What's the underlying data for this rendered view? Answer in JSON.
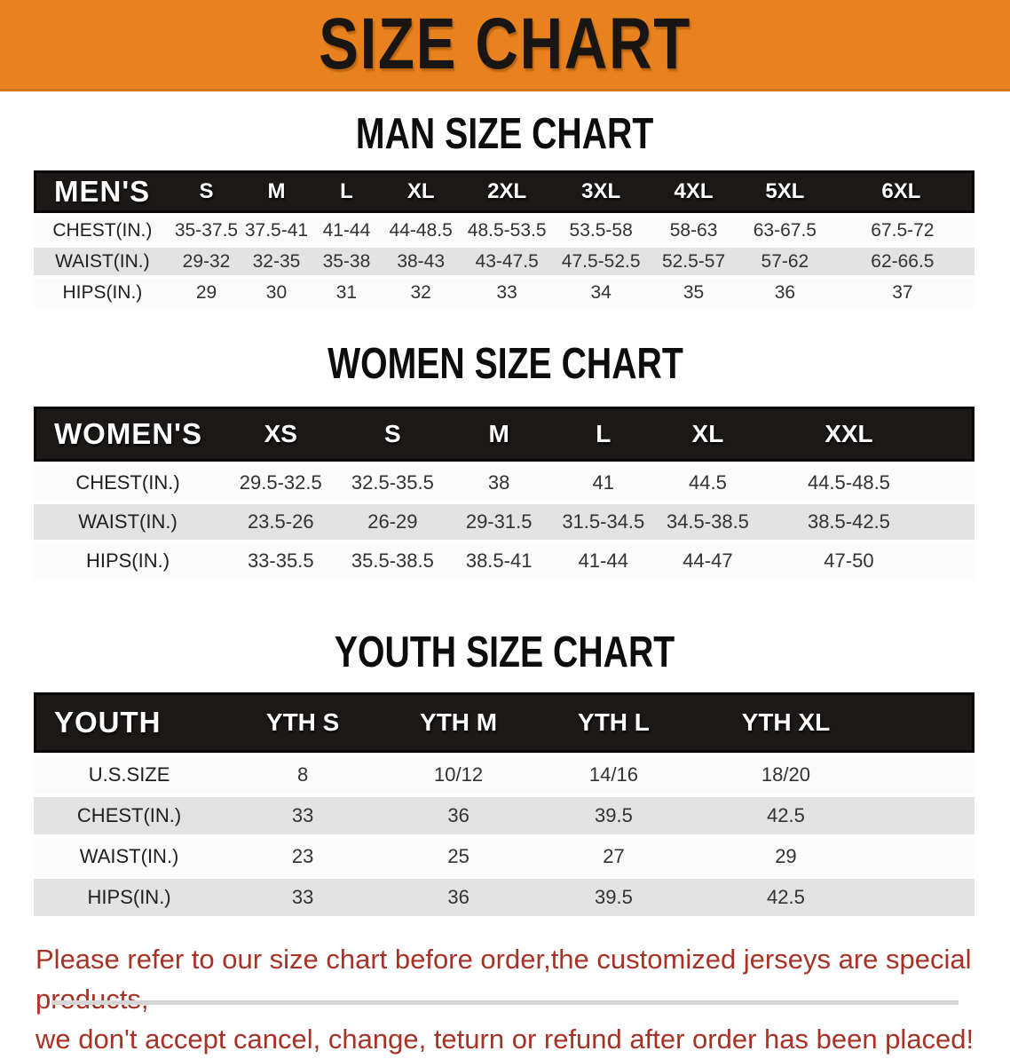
{
  "banner": {
    "title": "SIZE CHART",
    "bg_color": "#E8821E"
  },
  "sections": [
    {
      "id": "men",
      "heading": "MAN SIZE CHART",
      "table": {
        "group_label": "MEN'S",
        "columns": [
          "S",
          "M",
          "L",
          "XL",
          "2XL",
          "3XL",
          "4XL",
          "5XL",
          "6XL"
        ],
        "rows": [
          {
            "label": "CHEST(IN.)",
            "values": [
              "35-37.5",
              "37.5-41",
              "41-44",
              "44-48.5",
              "48.5-53.5",
              "53.5-58",
              "58-63",
              "63-67.5",
              "67.5-72"
            ]
          },
          {
            "label": "WAIST(IN.)",
            "values": [
              "29-32",
              "32-35",
              "35-38",
              "38-43",
              "43-47.5",
              "47.5-52.5",
              "52.5-57",
              "57-62",
              "62-66.5"
            ]
          },
          {
            "label": "HIPS(IN.)",
            "values": [
              "29",
              "30",
              "31",
              "32",
              "33",
              "34",
              "35",
              "36",
              "37"
            ]
          }
        ]
      }
    },
    {
      "id": "women",
      "heading": "WOMEN SIZE CHART",
      "table": {
        "group_label": "WOMEN'S",
        "columns": [
          "XS",
          "S",
          "M",
          "L",
          "XL",
          "XXL"
        ],
        "rows": [
          {
            "label": "CHEST(IN.)",
            "values": [
              "29.5-32.5",
              "32.5-35.5",
              "38",
              "41",
              "44.5",
              "44.5-48.5"
            ]
          },
          {
            "label": "WAIST(IN.)",
            "values": [
              "23.5-26",
              "26-29",
              "29-31.5",
              "31.5-34.5",
              "34.5-38.5",
              "38.5-42.5"
            ]
          },
          {
            "label": "HIPS(IN.)",
            "values": [
              "33-35.5",
              "35.5-38.5",
              "38.5-41",
              "41-44",
              "44-47",
              "47-50"
            ]
          }
        ]
      }
    },
    {
      "id": "youth",
      "heading": "YOUTH SIZE CHART",
      "table": {
        "group_label": "YOUTH",
        "columns": [
          "YTH S",
          "YTH M",
          "YTH L",
          "YTH XL"
        ],
        "rows": [
          {
            "label": "U.S.SIZE",
            "values": [
              "8",
              "10/12",
              "14/16",
              "18/20"
            ]
          },
          {
            "label": "CHEST(IN.)",
            "values": [
              "33",
              "36",
              "39.5",
              "42.5"
            ]
          },
          {
            "label": "WAIST(IN.)",
            "values": [
              "23",
              "25",
              "27",
              "29"
            ]
          },
          {
            "label": "HIPS(IN.)",
            "values": [
              "33",
              "36",
              "39.5",
              "42.5"
            ]
          }
        ]
      }
    }
  ],
  "footer": {
    "lines": [
      "Please refer to our size chart before order,the customized jerseys are special products,",
      "we don't accept cancel, change, teturn or refund after order has been placed!"
    ],
    "text_color": "#A93226"
  },
  "colors": {
    "banner_orange": "#E8821E",
    "table_header_black": "#1b1817",
    "row_gray": "#e3e3e3",
    "row_white": "#fbfbfb",
    "notice_red": "#A93226"
  }
}
